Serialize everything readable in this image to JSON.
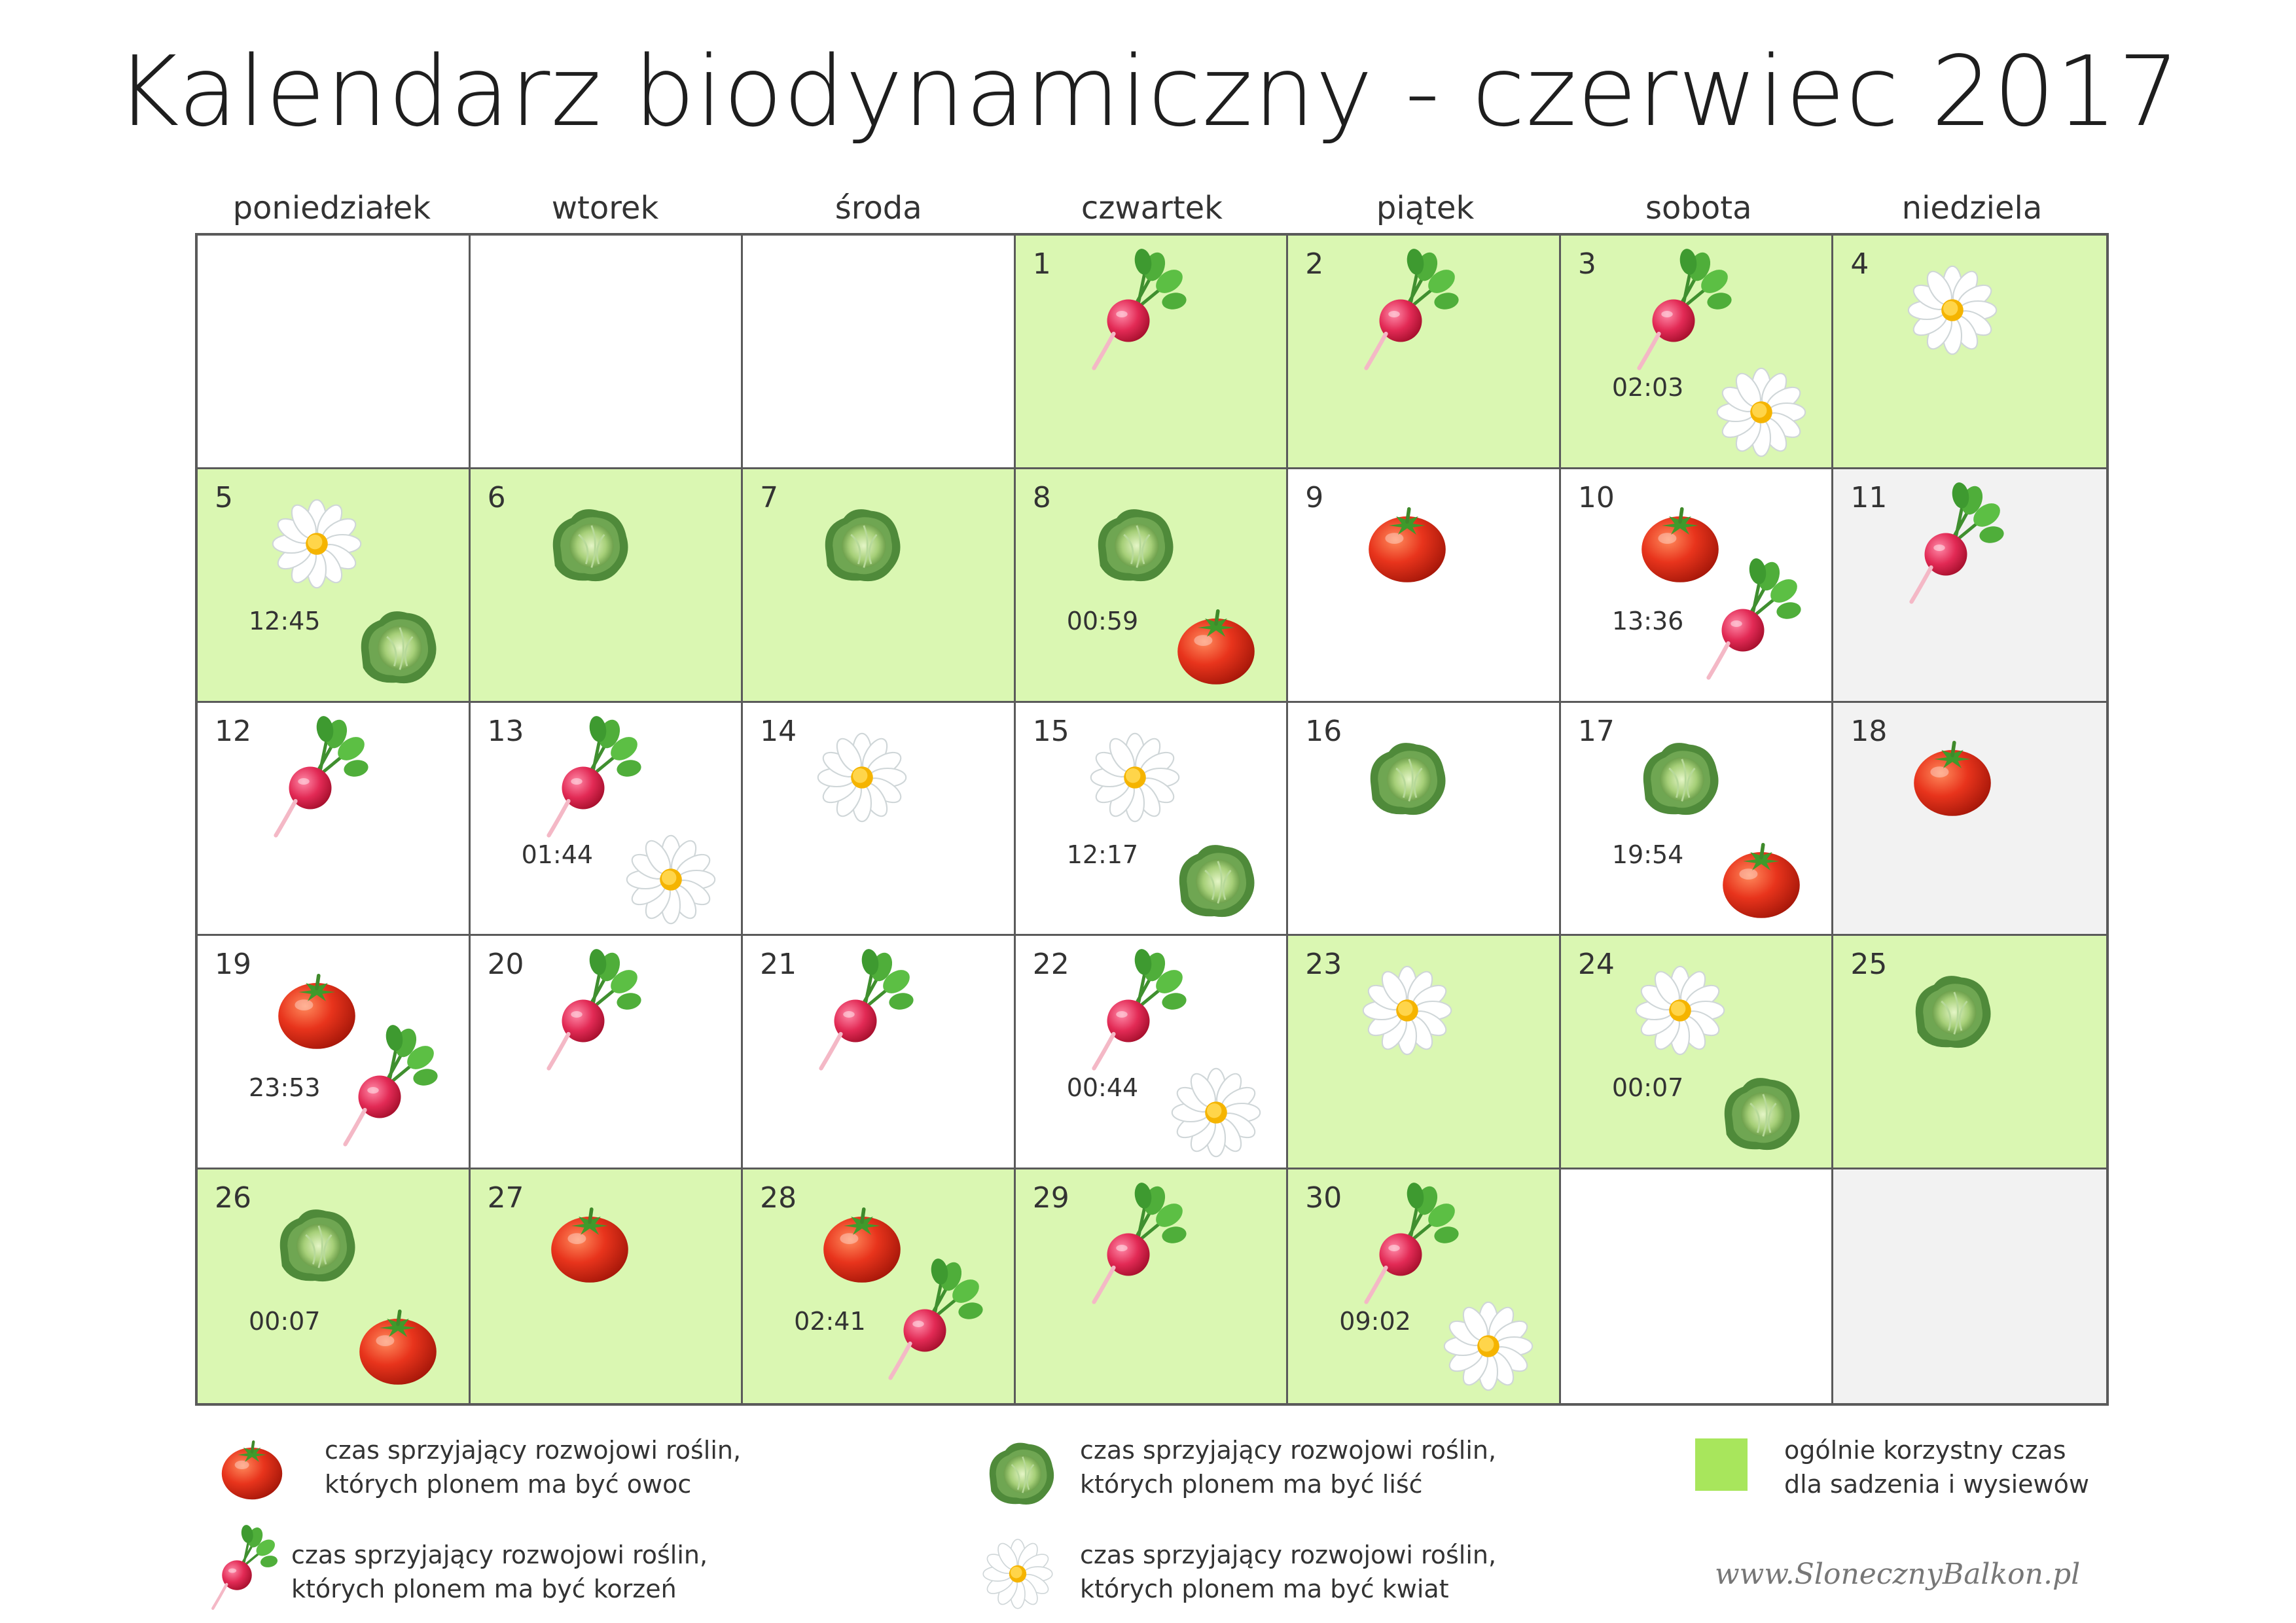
{
  "title": "Kalendarz biodynamiczny - czerwiec 2017",
  "weekdays": [
    "poniedziałek",
    "wtorek",
    "środa",
    "czwartek",
    "piątek",
    "sobota",
    "niedziela"
  ],
  "colors": {
    "green_cell": "#daf7b2",
    "grey_cell": "#f2f2f2",
    "legend_green": "#a8e65c",
    "grid_line": "#5a5a5a"
  },
  "days": [
    {
      "day": "",
      "bg": "white",
      "icons": []
    },
    {
      "day": "",
      "bg": "white",
      "icons": []
    },
    {
      "day": "",
      "bg": "white",
      "icons": []
    },
    {
      "day": "1",
      "bg": "green",
      "icons": [
        "radish"
      ]
    },
    {
      "day": "2",
      "bg": "green",
      "icons": [
        "radish"
      ]
    },
    {
      "day": "3",
      "bg": "green",
      "icons": [
        "radish",
        "flower"
      ],
      "time": "02:03"
    },
    {
      "day": "4",
      "bg": "green",
      "icons": [
        "flower"
      ]
    },
    {
      "day": "5",
      "bg": "green",
      "icons": [
        "flower",
        "cabbage"
      ],
      "time": "12:45"
    },
    {
      "day": "6",
      "bg": "green",
      "icons": [
        "cabbage"
      ]
    },
    {
      "day": "7",
      "bg": "green",
      "icons": [
        "cabbage"
      ]
    },
    {
      "day": "8",
      "bg": "green",
      "icons": [
        "cabbage",
        "tomato"
      ],
      "time": "00:59"
    },
    {
      "day": "9",
      "bg": "white",
      "icons": [
        "tomato"
      ]
    },
    {
      "day": "10",
      "bg": "white",
      "icons": [
        "tomato",
        "radish"
      ],
      "time": "13:36"
    },
    {
      "day": "11",
      "bg": "grey",
      "icons": [
        "radish"
      ]
    },
    {
      "day": "12",
      "bg": "white",
      "icons": [
        "radish"
      ]
    },
    {
      "day": "13",
      "bg": "white",
      "icons": [
        "radish",
        "flower"
      ],
      "time": "01:44"
    },
    {
      "day": "14",
      "bg": "white",
      "icons": [
        "flower"
      ]
    },
    {
      "day": "15",
      "bg": "white",
      "icons": [
        "flower",
        "cabbage"
      ],
      "time": "12:17"
    },
    {
      "day": "16",
      "bg": "white",
      "icons": [
        "cabbage"
      ]
    },
    {
      "day": "17",
      "bg": "white",
      "icons": [
        "cabbage",
        "tomato"
      ],
      "time": "19:54"
    },
    {
      "day": "18",
      "bg": "grey",
      "icons": [
        "tomato"
      ]
    },
    {
      "day": "19",
      "bg": "white",
      "icons": [
        "tomato",
        "radish"
      ],
      "time": "23:53"
    },
    {
      "day": "20",
      "bg": "white",
      "icons": [
        "radish"
      ]
    },
    {
      "day": "21",
      "bg": "white",
      "icons": [
        "radish"
      ]
    },
    {
      "day": "22",
      "bg": "white",
      "icons": [
        "radish",
        "flower"
      ],
      "time": "00:44"
    },
    {
      "day": "23",
      "bg": "green",
      "icons": [
        "flower"
      ]
    },
    {
      "day": "24",
      "bg": "green",
      "icons": [
        "flower",
        "cabbage"
      ],
      "time": "00:07"
    },
    {
      "day": "25",
      "bg": "green",
      "icons": [
        "cabbage"
      ]
    },
    {
      "day": "26",
      "bg": "green",
      "icons": [
        "cabbage",
        "tomato"
      ],
      "time": "00:07"
    },
    {
      "day": "27",
      "bg": "green",
      "icons": [
        "tomato"
      ]
    },
    {
      "day": "28",
      "bg": "green",
      "icons": [
        "tomato",
        "radish"
      ],
      "time": "02:41"
    },
    {
      "day": "29",
      "bg": "green",
      "icons": [
        "radish"
      ]
    },
    {
      "day": "30",
      "bg": "green",
      "icons": [
        "radish",
        "flower"
      ],
      "time": "09:02"
    },
    {
      "day": "",
      "bg": "white",
      "icons": []
    },
    {
      "day": "",
      "bg": "grey",
      "icons": []
    }
  ],
  "legend": {
    "fruit": {
      "icon": "tomato",
      "line1": "czas sprzyjający rozwojowi roślin,",
      "line2": "których plonem ma być owoc"
    },
    "leaf": {
      "icon": "cabbage",
      "line1": "czas sprzyjający rozwojowi roślin,",
      "line2": "których plonem ma być liść"
    },
    "general": {
      "line1": "ogólnie korzystny czas",
      "line2": "dla sadzenia i wysiewów"
    },
    "root": {
      "icon": "radish",
      "line1": "czas sprzyjający rozwojowi roślin,",
      "line2": "których plonem ma być korzeń"
    },
    "flower": {
      "icon": "flower",
      "line1": "czas sprzyjający rozwojowi roślin,",
      "line2": "których plonem ma być kwiat"
    }
  },
  "website": "www.SlonecznyBalkon.pl"
}
